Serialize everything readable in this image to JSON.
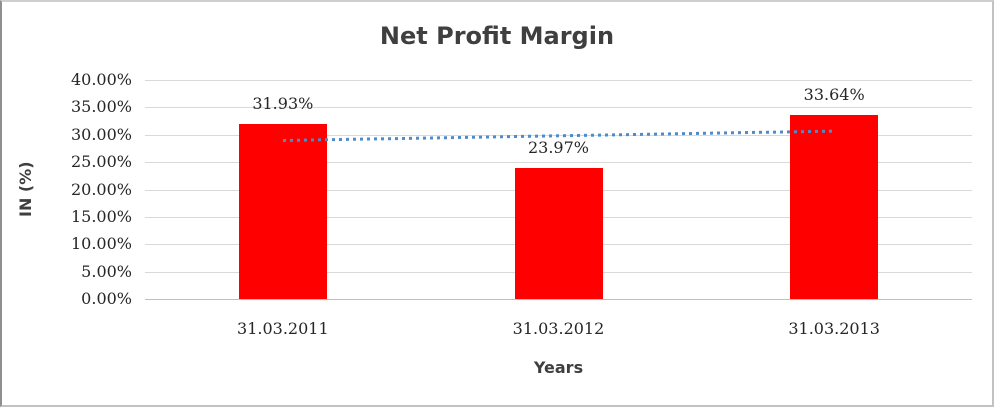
{
  "chart_data": {
    "type": "bar",
    "title": "Net Profit Margin",
    "xlabel": "Years",
    "ylabel": "IN (%)",
    "categories": [
      "31.03.2011",
      "31.03.2012",
      "31.03.2013"
    ],
    "series": [
      {
        "name": "Net Profit Margin",
        "values": [
          31.93,
          23.97,
          33.64
        ],
        "data_labels": [
          "31.93%",
          "23.97%",
          "33.64%"
        ],
        "color": "#ff0000"
      }
    ],
    "ylim": [
      0,
      40
    ],
    "ytick_step": 5,
    "yticks": [
      "0.00%",
      "5.00%",
      "10.00%",
      "15.00%",
      "20.00%",
      "25.00%",
      "30.00%",
      "35.00%",
      "40.00%"
    ],
    "grid": true,
    "legend": "none",
    "trendline": {
      "type": "linear",
      "style": "dotted",
      "color": "#4f8bc9",
      "start_value": 28.99,
      "end_value": 30.71
    },
    "style": {
      "bar_color": "#ff0000",
      "gridline_color": "#d9d9d9",
      "axis_line_color": "#bfbfbf",
      "title_color": "#3f3f3f",
      "tick_label_color": "#262626",
      "background": "#ffffff"
    }
  }
}
